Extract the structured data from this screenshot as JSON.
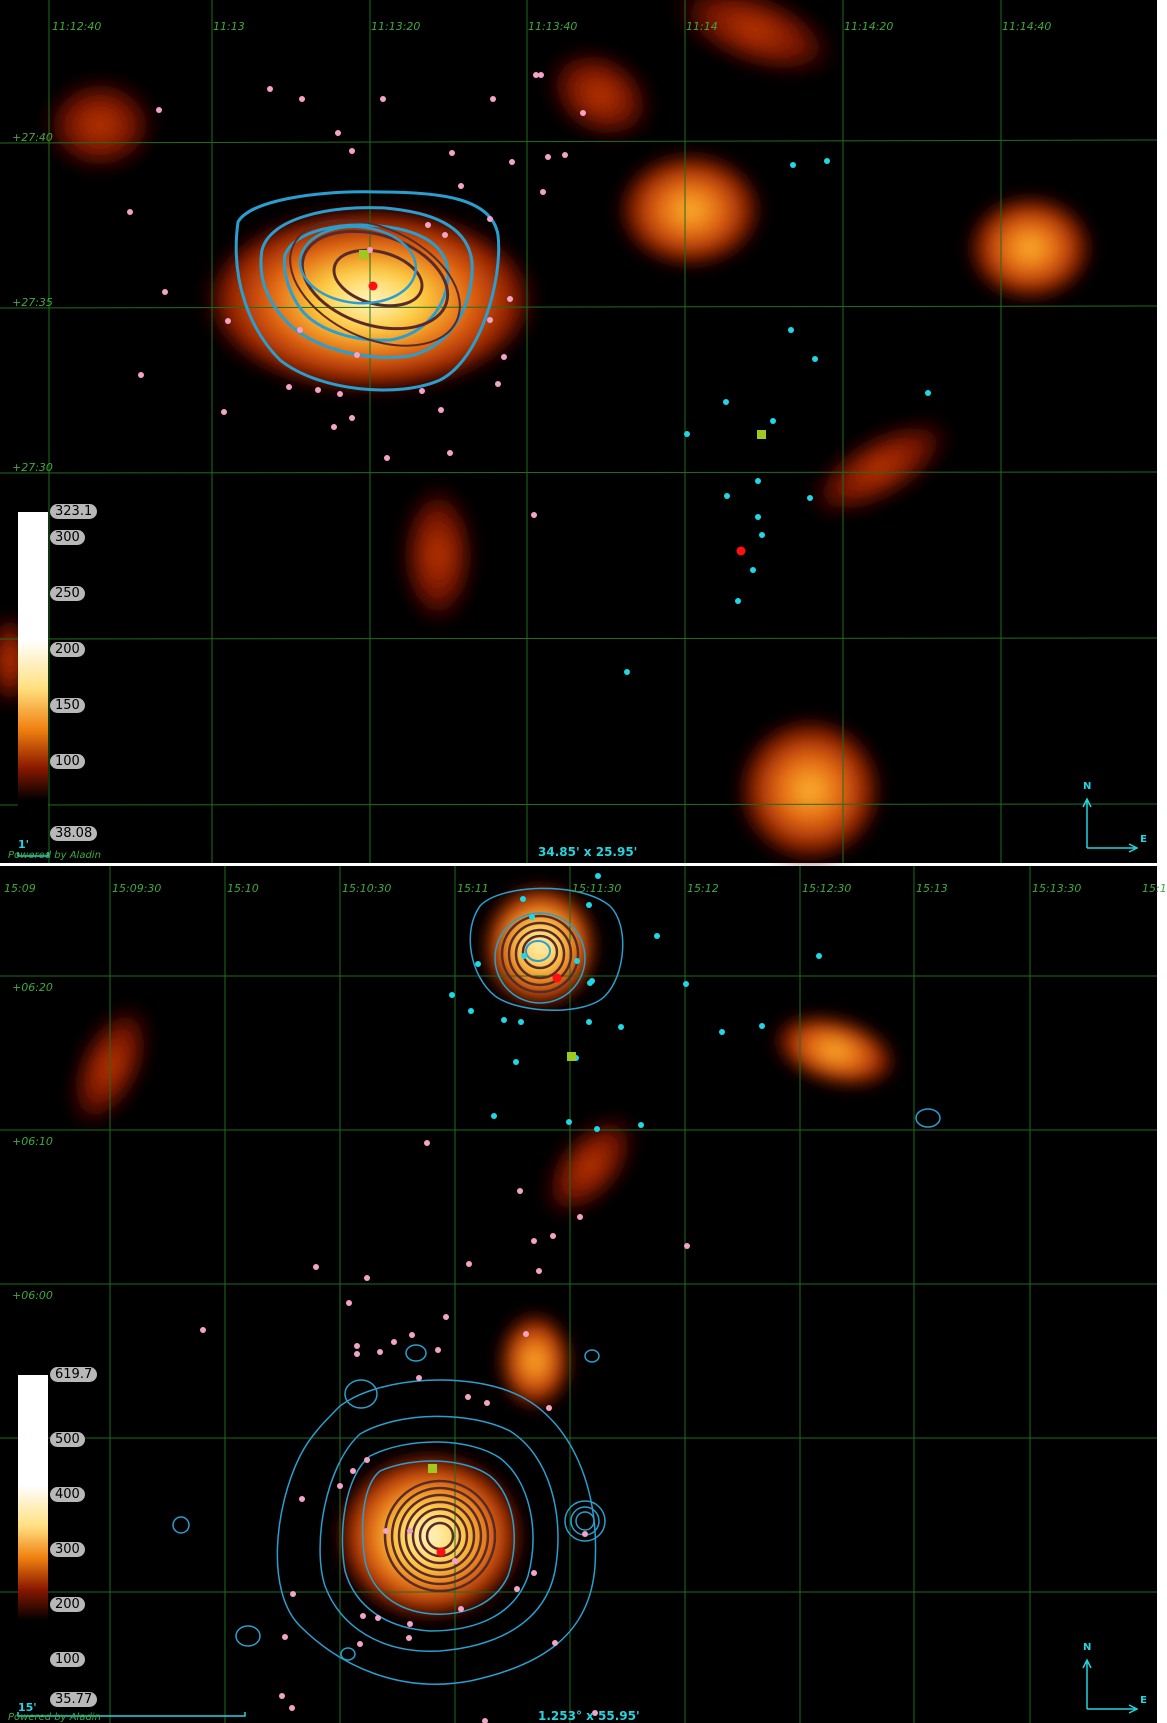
{
  "top": {
    "ra_labels": [
      "11:12:40",
      "11:13",
      "11:13:20",
      "11:13:40",
      "11:14",
      "11:14:20",
      "11:14:40"
    ],
    "dec_labels": [
      "+27:40",
      "+27:35",
      "+27:30"
    ],
    "colorbar": {
      "max": "323.1",
      "ticks": [
        "300",
        "250",
        "200",
        "150",
        "100"
      ],
      "min": "38.08"
    },
    "scale_label": "1'",
    "fov": "34.85' x 25.95'",
    "powered_by": "Powered by Aladin",
    "compass": {
      "north": "N",
      "east": "E"
    }
  },
  "bottom": {
    "ra_labels": [
      "15:09",
      "15:09:30",
      "15:10",
      "15:10:30",
      "15:11",
      "15:11:30",
      "15:12",
      "15:12:30",
      "15:13",
      "15:13:30",
      "15:1"
    ],
    "dec_labels": [
      "+06:20",
      "+06:10",
      "+06:00"
    ],
    "colorbar": {
      "max": "619.7",
      "ticks": [
        "500",
        "400",
        "300",
        "200",
        "100"
      ],
      "min": "35.77"
    },
    "scale_label": "15'",
    "fov": "1.253° x 55.95'",
    "powered_by": "Powered by Aladin",
    "compass": {
      "north": "N",
      "east": "E"
    }
  },
  "colors": {
    "background": "#000000",
    "grid": "#1e6e1e",
    "grid_label": "#3fa83f",
    "contour_blue": "#2a9fcf",
    "contour_brown": "#5a2a28",
    "source_pink": "#f4a3c8",
    "source_cyan": "#1fd8e6",
    "marker_red": "#ff1010",
    "marker_green": "#9fc820"
  }
}
